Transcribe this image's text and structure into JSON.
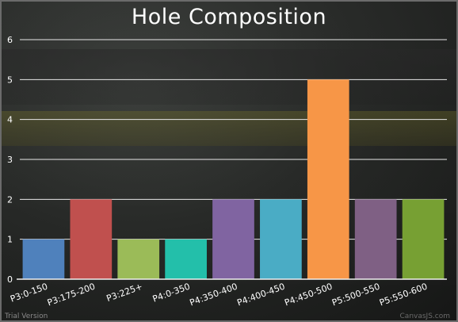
{
  "footer": {
    "left_text": "Trial Version",
    "right_text": "CanvasJS.com"
  },
  "chart_data": {
    "type": "bar",
    "title": "Hole Composition",
    "categories": [
      "P3:0-150",
      "P3:175-200",
      "P3:225+",
      "P4:0-350",
      "P4:350-400",
      "P4:400-450",
      "P4:450-500",
      "P5:500-550",
      "P5:550-600"
    ],
    "values": [
      1,
      2,
      1,
      1,
      2,
      2,
      5,
      2,
      2
    ],
    "colors": [
      "#4f81bc",
      "#c0504e",
      "#9bbb58",
      "#23bfaa",
      "#8064a1",
      "#4aacc5",
      "#f79647",
      "#7f6084",
      "#77a033"
    ],
    "ylim": [
      0,
      6
    ],
    "yticks": [
      0,
      1,
      2,
      3,
      4,
      5,
      6
    ],
    "grid": true,
    "xlabel": "",
    "ylabel": ""
  }
}
